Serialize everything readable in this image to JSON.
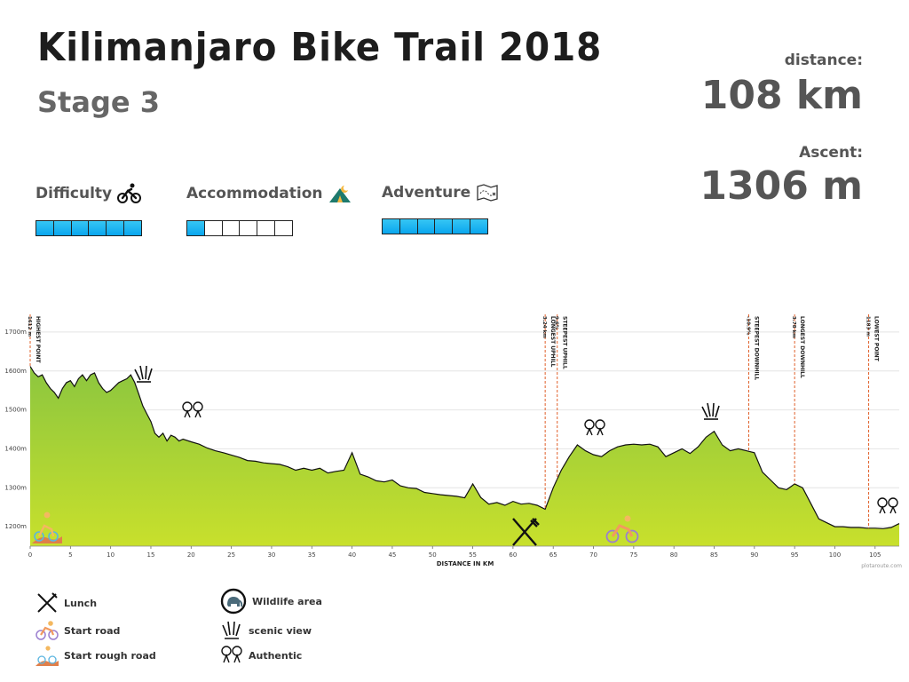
{
  "header": {
    "title": "Kilimanjaro Bike Trail 2018",
    "stage": "Stage 3"
  },
  "stats": {
    "distance_label": "distance:",
    "distance_value": "108 km",
    "ascent_label": "Ascent:",
    "ascent_value": "1306 m"
  },
  "ratings": [
    {
      "label": "Difficulty",
      "icon": "cyclist-icon",
      "level": 6,
      "max": 6
    },
    {
      "label": "Accommodation",
      "icon": "tent-icon",
      "level": 1,
      "max": 6
    },
    {
      "label": "Adventure",
      "icon": "map-icon",
      "level": 6,
      "max": 6
    }
  ],
  "legend": [
    {
      "label": "Lunch",
      "icon": "fork-knife-icon"
    },
    {
      "label": "Start road",
      "icon": "road-bike-icon"
    },
    {
      "label": "Start rough road",
      "icon": "rough-road-icon"
    },
    {
      "label": "Wildlife area",
      "icon": "elephant-icon"
    },
    {
      "label": "scenic view",
      "icon": "scenic-view-icon"
    },
    {
      "label": "Authentic",
      "icon": "authentic-icon"
    }
  ],
  "chart_data": {
    "type": "area",
    "xlabel": "DISTANCE IN KM",
    "ylabel": "",
    "xlim": [
      0,
      108
    ],
    "ylim": [
      1150,
      1750
    ],
    "x_ticks": [
      0,
      5,
      10,
      15,
      20,
      25,
      30,
      35,
      40,
      45,
      50,
      55,
      60,
      65,
      70,
      75,
      80,
      85,
      90,
      95,
      100,
      105
    ],
    "y_ticks": [
      1200,
      1300,
      1400,
      1500,
      1600,
      1700
    ],
    "y_tick_labels": [
      "1200m",
      "1300m",
      "1400m",
      "1500m",
      "1600m",
      "1700m"
    ],
    "grid": true,
    "fill_colors": {
      "top": "#8cc63f",
      "bottom": "#c8e02c",
      "line": "#111111"
    },
    "x": [
      0,
      0.5,
      1,
      1.5,
      2,
      2.5,
      3,
      3.5,
      4,
      4.5,
      5,
      5.5,
      6,
      6.5,
      7,
      7.5,
      8,
      8.5,
      9,
      9.5,
      10,
      10.5,
      11,
      11.5,
      12,
      12.5,
      13,
      13.5,
      14,
      14.5,
      15,
      15.5,
      16,
      16.5,
      17,
      17.5,
      18,
      18.5,
      19,
      20,
      21,
      22,
      23,
      24,
      25,
      26,
      27,
      28,
      29,
      30,
      31,
      32,
      33,
      34,
      35,
      36,
      37,
      38,
      39,
      40,
      41,
      42,
      43,
      44,
      45,
      46,
      47,
      48,
      49,
      50,
      51,
      52,
      53,
      54,
      55,
      56,
      57,
      58,
      59,
      60,
      61,
      62,
      63,
      64,
      65,
      66,
      67,
      68,
      69,
      70,
      71,
      72,
      73,
      74,
      75,
      76,
      77,
      78,
      79,
      80,
      81,
      82,
      83,
      84,
      85,
      86,
      87,
      88,
      89,
      90,
      91,
      92,
      93,
      94,
      95,
      96,
      97,
      98,
      99,
      100,
      101,
      102,
      103,
      104,
      105,
      106,
      107,
      108
    ],
    "y": [
      1612,
      1595,
      1585,
      1590,
      1570,
      1555,
      1545,
      1530,
      1555,
      1570,
      1575,
      1560,
      1580,
      1590,
      1575,
      1590,
      1595,
      1570,
      1555,
      1545,
      1550,
      1560,
      1570,
      1575,
      1580,
      1590,
      1570,
      1540,
      1510,
      1490,
      1470,
      1440,
      1430,
      1440,
      1420,
      1435,
      1430,
      1420,
      1425,
      1418,
      1412,
      1402,
      1395,
      1390,
      1384,
      1378,
      1370,
      1368,
      1364,
      1362,
      1360,
      1354,
      1345,
      1350,
      1345,
      1350,
      1338,
      1342,
      1345,
      1390,
      1335,
      1328,
      1318,
      1315,
      1320,
      1305,
      1300,
      1298,
      1288,
      1285,
      1282,
      1280,
      1278,
      1274,
      1310,
      1275,
      1258,
      1262,
      1255,
      1265,
      1258,
      1260,
      1255,
      1245,
      1300,
      1345,
      1380,
      1410,
      1395,
      1385,
      1380,
      1395,
      1405,
      1410,
      1412,
      1410,
      1412,
      1405,
      1380,
      1390,
      1400,
      1388,
      1405,
      1430,
      1445,
      1410,
      1395,
      1400,
      1395,
      1390,
      1340,
      1320,
      1300,
      1295,
      1310,
      1300,
      1260,
      1220,
      1210,
      1200,
      1200,
      1198,
      1198,
      1196,
      1196,
      1195,
      1198,
      1208
    ]
  },
  "annotations": [
    {
      "x": 0,
      "label": "HIGHEST POINT",
      "value": "1612 m"
    },
    {
      "x": 64,
      "label": "LONGEST UPHILL",
      "value": "3.24 km"
    },
    {
      "x": 65.5,
      "label": "STEEPEST UPHILL",
      "value": "9.6%"
    },
    {
      "x": 89.3,
      "label": "STEEPEST DOWNHILL",
      "value": "-10.9%"
    },
    {
      "x": 95,
      "label": "LONGEST DOWNHILL",
      "value": "3.78 km"
    },
    {
      "x": 104.2,
      "label": "LOWEST POINT",
      "value": "1183 m"
    }
  ],
  "watermark": "plotaroute.com"
}
